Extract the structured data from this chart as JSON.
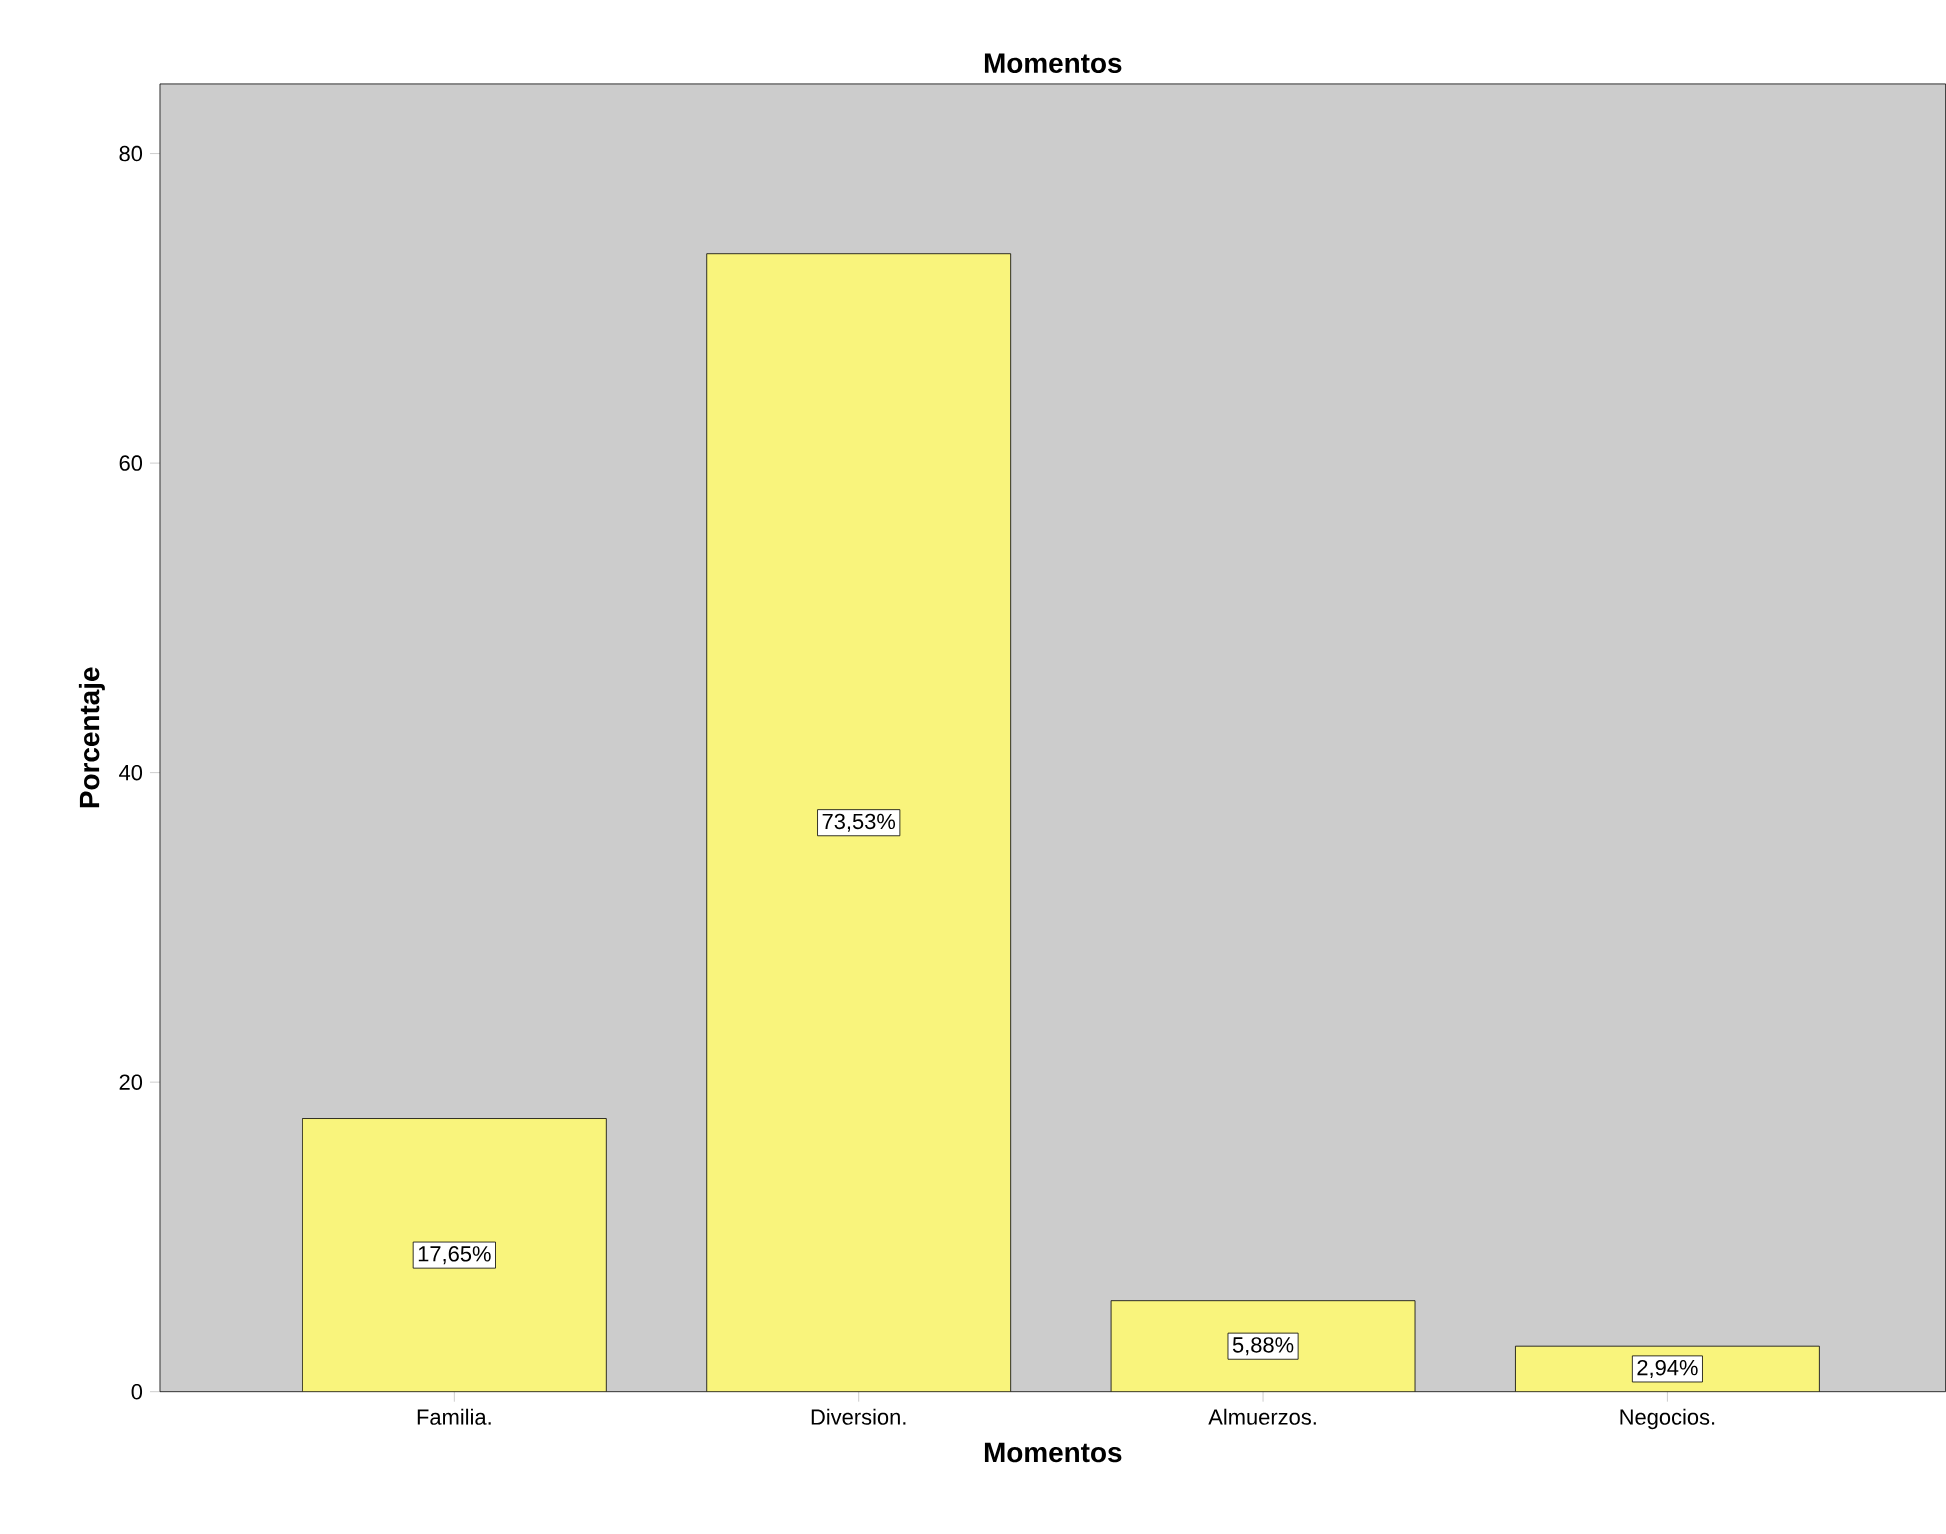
{
  "chart_data": {
    "type": "bar",
    "title": "Momentos",
    "xlabel": "Momentos",
    "ylabel": "Porcentaje",
    "categories": [
      "Familia.",
      "Diversion.",
      "Almuerzos.",
      "Negocios."
    ],
    "values": [
      17.65,
      73.53,
      5.88,
      2.94
    ],
    "value_labels": [
      "17,65%",
      "73,53%",
      "5,88%",
      "2,94%"
    ],
    "color": "#f9f47c",
    "ylim": [
      0,
      84.5
    ],
    "yticks": [
      0,
      20,
      40,
      60,
      80
    ]
  }
}
